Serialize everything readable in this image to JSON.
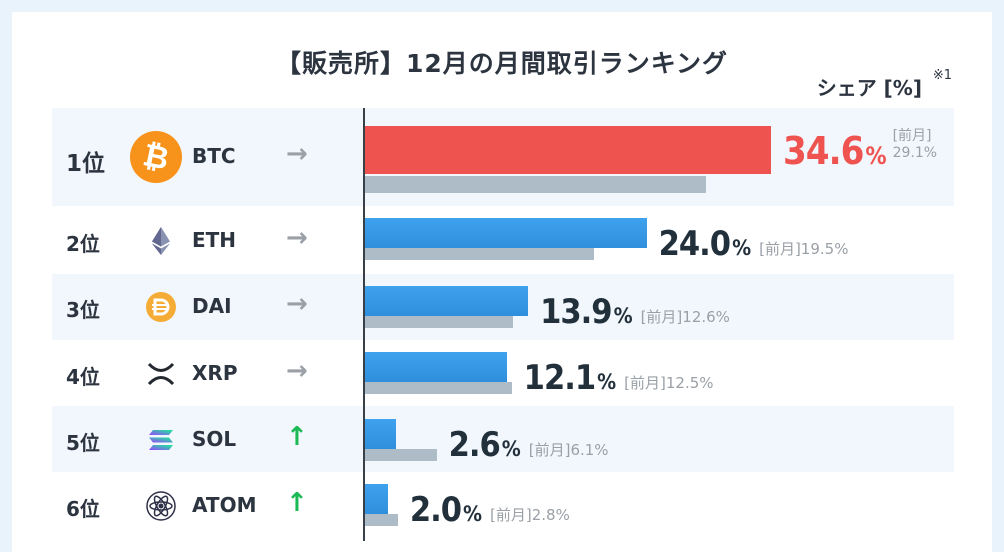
{
  "title": "【販売所】12月の月間取引ランキング",
  "share_label": "シェア [%]",
  "share_note": "※1",
  "prev_prefix": "[前月]",
  "colors": {
    "top": "#ef5350",
    "bar": "#3a9be8",
    "prev": "#aebcc7",
    "up": "#1db954",
    "flat": "#9aa0a6"
  },
  "chart_data": {
    "type": "bar",
    "orientation": "horizontal",
    "categories": [
      "BTC",
      "ETH",
      "DAI",
      "XRP",
      "SOL",
      "ATOM"
    ],
    "series": [
      {
        "name": "",
        "values": [
          34.6,
          24.0,
          13.9,
          12.1,
          2.6,
          2.0
        ]
      },
      {
        "name": "前月",
        "values": [
          29.1,
          19.5,
          12.6,
          12.5,
          6.1,
          2.8
        ]
      }
    ],
    "value_unit": "%"
  },
  "rows": [
    {
      "rank": "1位",
      "symbol": "BTC",
      "icon": "bitcoin-icon",
      "trend": "→",
      "trend_type": "flat",
      "value": "34.6",
      "unit": "%",
      "prev": "29.1%"
    },
    {
      "rank": "2位",
      "symbol": "ETH",
      "icon": "ethereum-icon",
      "trend": "→",
      "trend_type": "flat",
      "value": "24.0",
      "unit": "%",
      "prev": "19.5%"
    },
    {
      "rank": "3位",
      "symbol": "DAI",
      "icon": "dai-icon",
      "trend": "→",
      "trend_type": "flat",
      "value": "13.9",
      "unit": "%",
      "prev": "12.6%"
    },
    {
      "rank": "4位",
      "symbol": "XRP",
      "icon": "xrp-icon",
      "trend": "→",
      "trend_type": "flat",
      "value": "12.1",
      "unit": "%",
      "prev": "12.5%"
    },
    {
      "rank": "5位",
      "symbol": "SOL",
      "icon": "solana-icon",
      "trend": "↑",
      "trend_type": "up",
      "value": "2.6",
      "unit": "%",
      "prev": "6.1%"
    },
    {
      "rank": "6位",
      "symbol": "ATOM",
      "icon": "cosmos-icon",
      "trend": "↑",
      "trend_type": "up",
      "value": "2.0",
      "unit": "%",
      "prev": "2.8%"
    }
  ]
}
